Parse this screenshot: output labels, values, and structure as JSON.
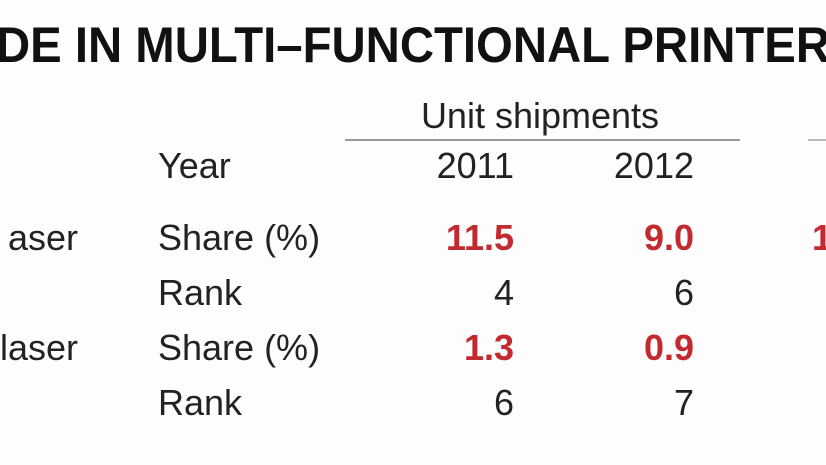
{
  "header": {
    "title": "DE IN MULTI–FUNCTIONAL PRINTER",
    "group_header": "Unit shipments"
  },
  "table": {
    "columns": [
      "Year",
      "2011",
      "2012"
    ],
    "rows": [
      {
        "name": "aser",
        "rows": [
          [
            "Share (%)",
            "11.5",
            "9.0"
          ],
          [
            "Rank",
            "4",
            "6"
          ]
        ]
      },
      {
        "name": "laser",
        "rows": [
          [
            "Share (%)",
            "1.3",
            "0.9"
          ],
          [
            "Rank",
            "6",
            "7"
          ]
        ]
      }
    ]
  },
  "cropped_text": [
    "1"
  ]
}
